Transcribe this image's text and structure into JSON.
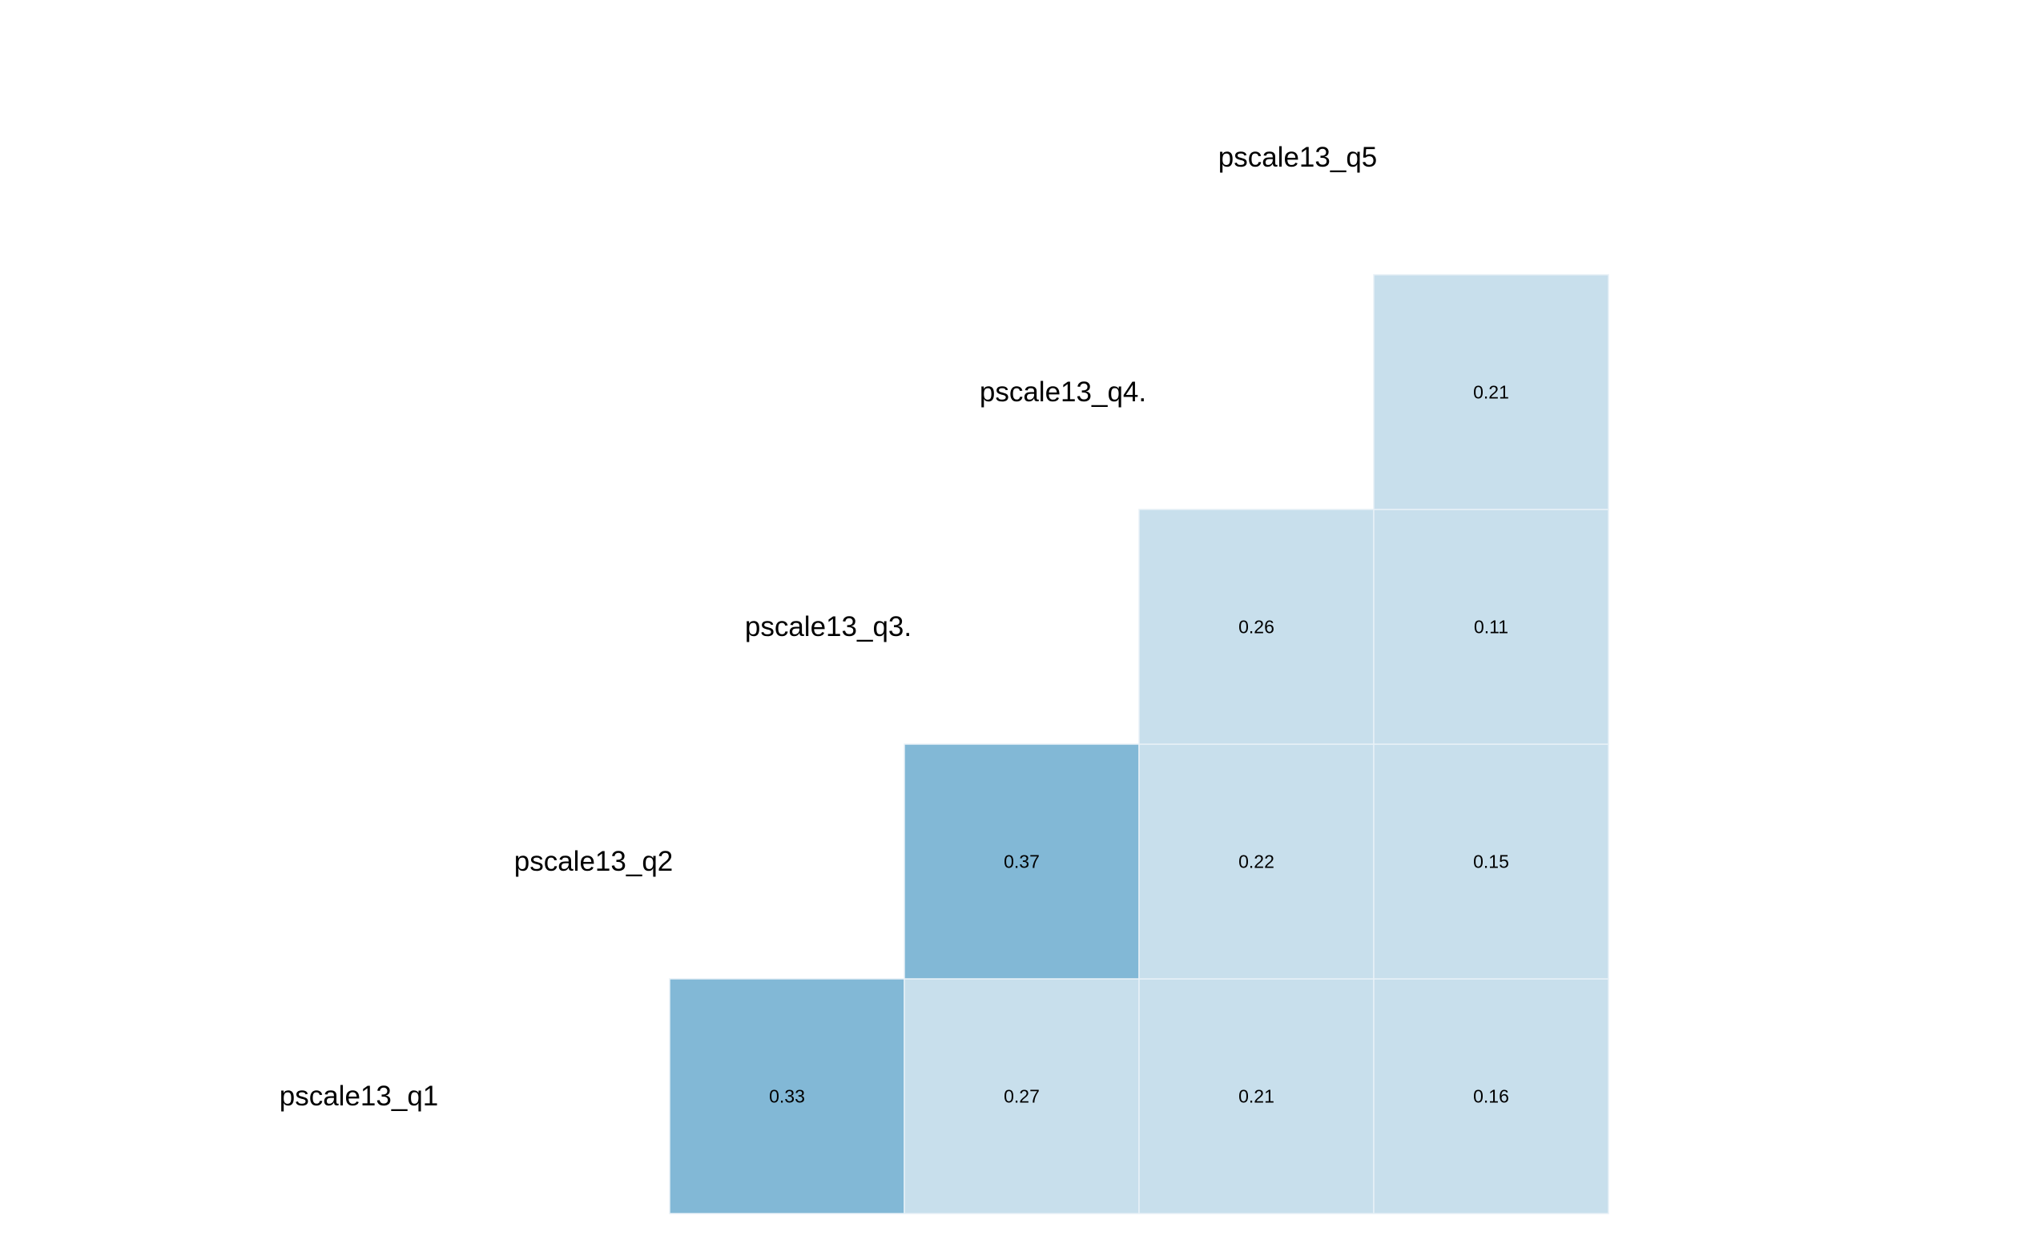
{
  "chart_data": {
    "type": "heatmap",
    "variables": [
      "pscale13_q1",
      "pscale13_q2",
      "pscale13_q3.",
      "pscale13_q4.",
      "pscale13_q5"
    ],
    "cells": [
      {
        "row": "pscale13_q1",
        "col": "pscale13_q2",
        "value": 0.33,
        "label": "0.33"
      },
      {
        "row": "pscale13_q1",
        "col": "pscale13_q3.",
        "value": 0.27,
        "label": "0.27"
      },
      {
        "row": "pscale13_q1",
        "col": "pscale13_q4.",
        "value": 0.21,
        "label": "0.21"
      },
      {
        "row": "pscale13_q1",
        "col": "pscale13_q5",
        "value": 0.16,
        "label": "0.16"
      },
      {
        "row": "pscale13_q2",
        "col": "pscale13_q3.",
        "value": 0.37,
        "label": "0.37"
      },
      {
        "row": "pscale13_q2",
        "col": "pscale13_q4.",
        "value": 0.22,
        "label": "0.22"
      },
      {
        "row": "pscale13_q2",
        "col": "pscale13_q5",
        "value": 0.15,
        "label": "0.15"
      },
      {
        "row": "pscale13_q3.",
        "col": "pscale13_q4.",
        "value": 0.26,
        "label": "0.26"
      },
      {
        "row": "pscale13_q3.",
        "col": "pscale13_q5",
        "value": 0.11,
        "label": "0.11"
      },
      {
        "row": "pscale13_q4.",
        "col": "pscale13_q5",
        "value": 0.21,
        "label": "0.21"
      }
    ],
    "colors": {
      "high": "#82b8d6",
      "low": "#c8dfec",
      "cell_border": "#e8f1f7",
      "text": "#000000"
    },
    "color_threshold": 0.3,
    "grid": false,
    "legend": "none"
  }
}
